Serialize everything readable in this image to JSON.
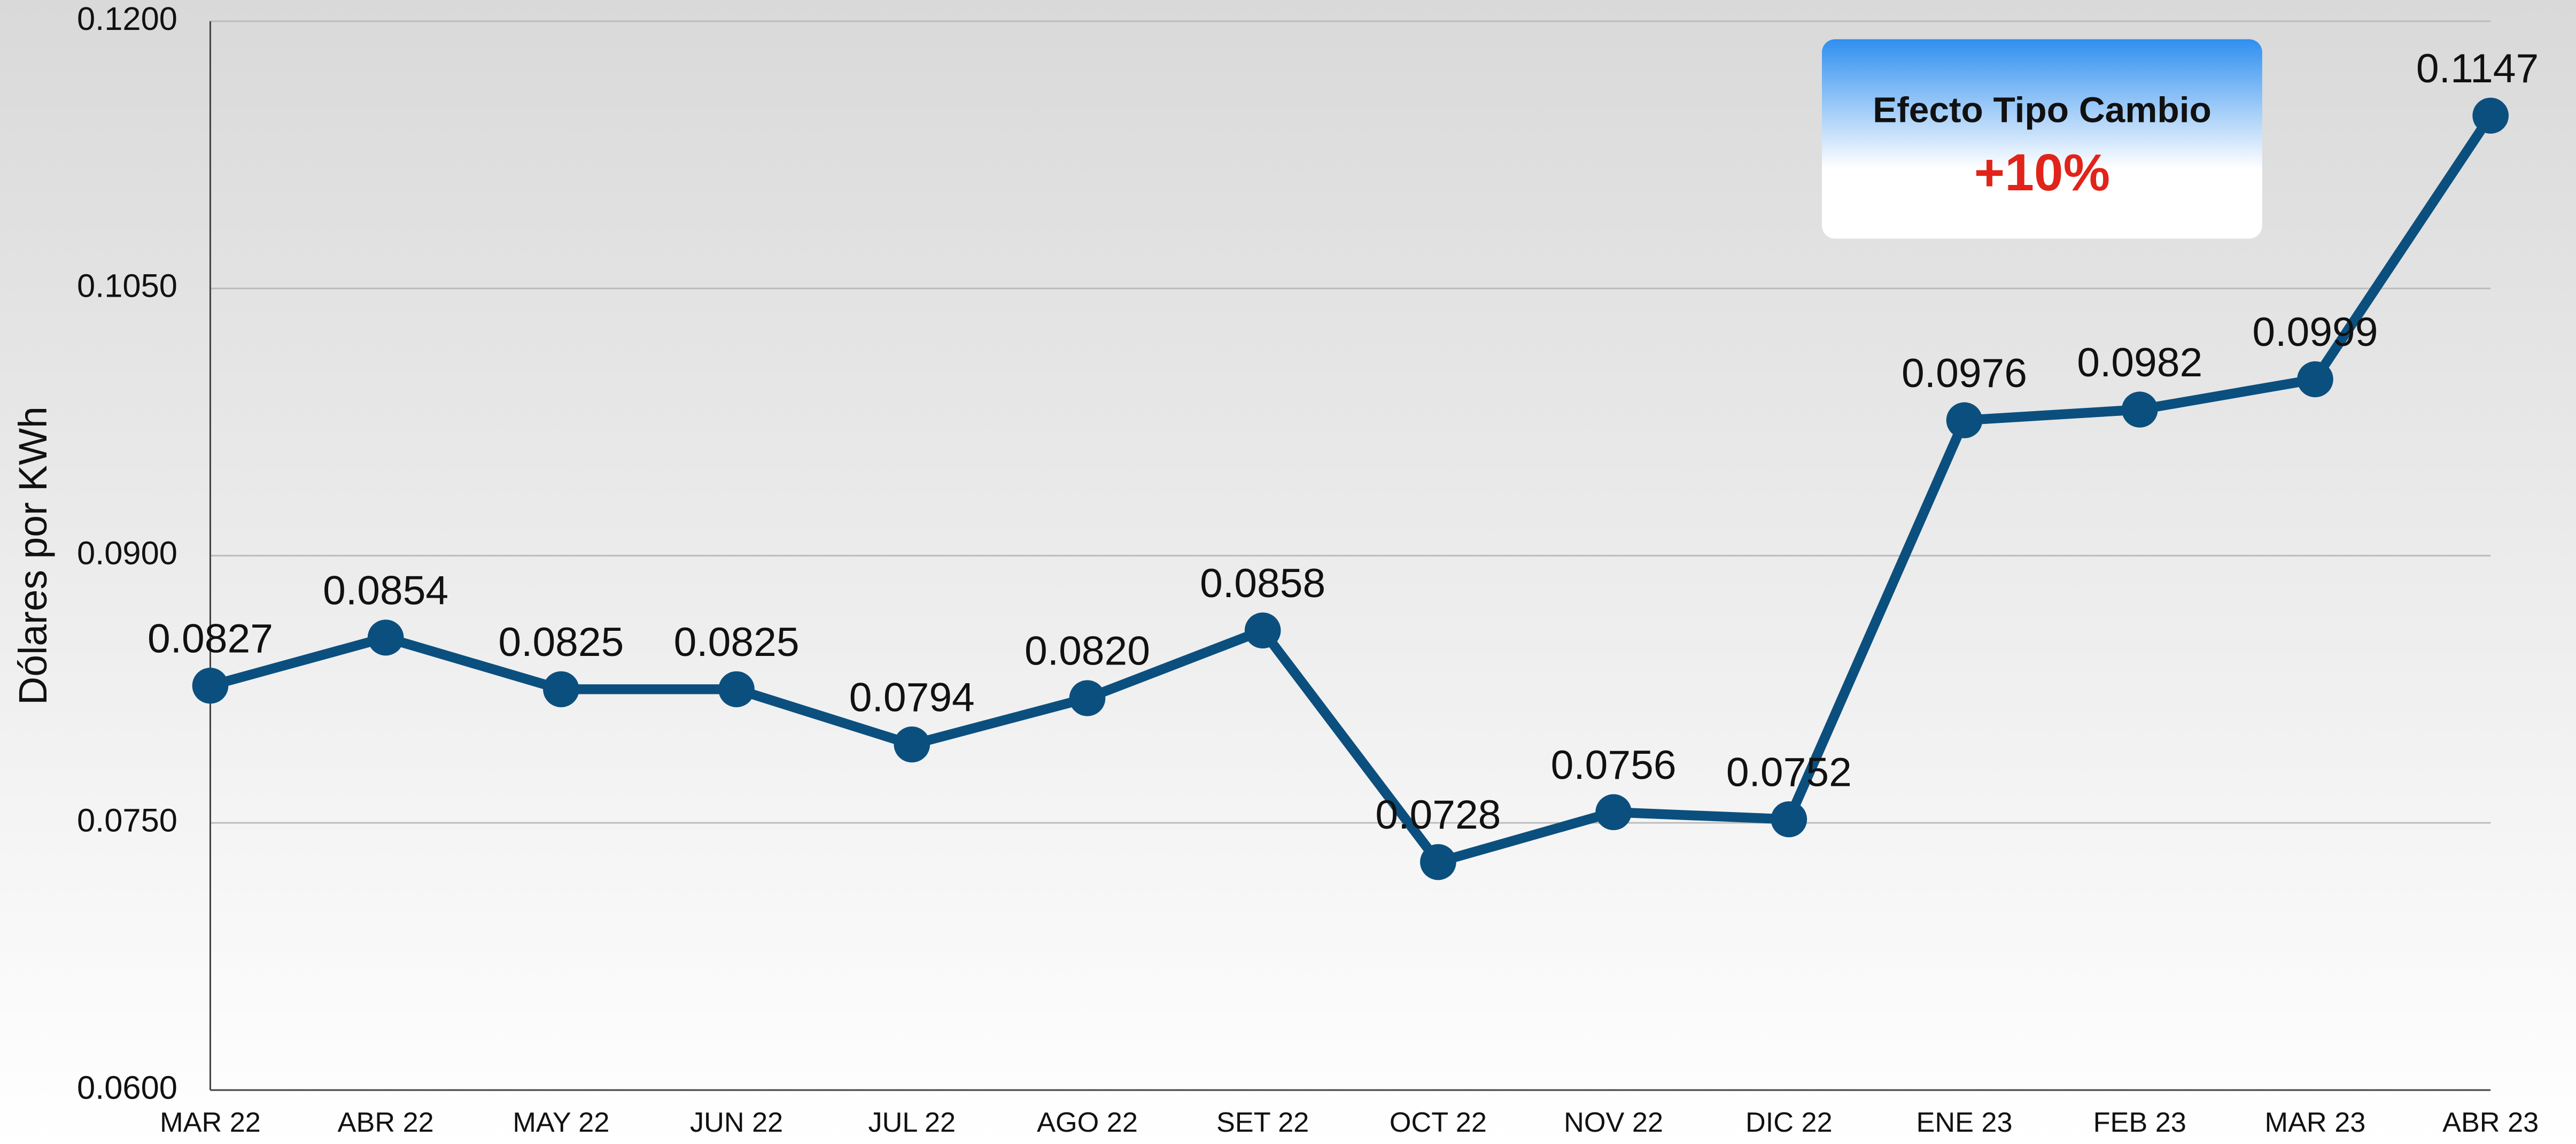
{
  "chart_data": {
    "type": "line",
    "y_axis_label": "Dólares por KWh",
    "categories": [
      "MAR 22",
      "ABR 22",
      "MAY 22",
      "JUN 22",
      "JUL 22",
      "AGO 22",
      "SET 22",
      "OCT 22",
      "NOV 22",
      "DIC 22",
      "ENE 23",
      "FEB 23",
      "MAR 23",
      "ABR 23"
    ],
    "series": [
      {
        "name": "Dólares por KWh",
        "color": "#0b4f7e",
        "values": [
          0.0827,
          0.0854,
          0.0825,
          0.0825,
          0.0794,
          0.082,
          0.0858,
          0.0728,
          0.0756,
          0.0752,
          0.0976,
          0.0982,
          0.0999,
          0.1147
        ],
        "value_labels": [
          "0.0827",
          "0.0854",
          "0.0825",
          "0.0825",
          "0.0794",
          "0.0820",
          "0.0858",
          "0.0728",
          "0.0756",
          "0.0752",
          "0.0976",
          "0.0982",
          "0.0999",
          "0.1147"
        ]
      }
    ],
    "ylim": [
      0.06,
      0.12
    ],
    "yticks": [
      {
        "value": 0.06,
        "label": "0.0600"
      },
      {
        "value": 0.075,
        "label": "0.0750"
      },
      {
        "value": 0.09,
        "label": "0.0900"
      },
      {
        "value": 0.105,
        "label": "0.1050"
      },
      {
        "value": 0.12,
        "label": "0.1200"
      }
    ],
    "grid": true,
    "annotation": {
      "title": "Efecto Tipo Cambio",
      "text": "+10%"
    }
  }
}
